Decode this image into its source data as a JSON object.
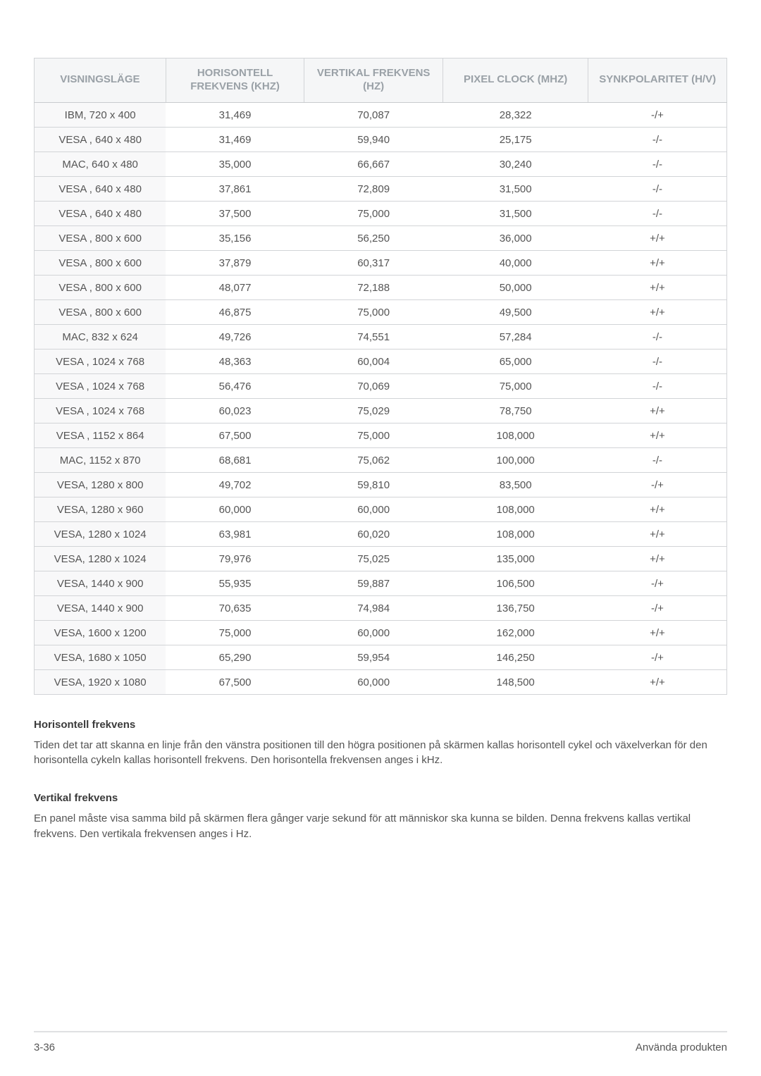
{
  "table": {
    "columns": [
      {
        "label": "VISNINGSLÄGE",
        "width": "19%"
      },
      {
        "label": "HORISONTELL FREKVENS (KHZ)",
        "width": "20%"
      },
      {
        "label": "VERTIKAL FREKVENS (HZ)",
        "width": "20%"
      },
      {
        "label": "PIXEL CLOCK (MHZ)",
        "width": "21%"
      },
      {
        "label": "SYNKPOLARITET (H/V)",
        "width": "20%"
      }
    ],
    "rows": [
      [
        "IBM, 720 x 400",
        "31,469",
        "70,087",
        "28,322",
        "-/+"
      ],
      [
        "VESA , 640 x 480",
        "31,469",
        "59,940",
        "25,175",
        "-/-"
      ],
      [
        "MAC, 640 x 480",
        "35,000",
        "66,667",
        "30,240",
        "-/-"
      ],
      [
        "VESA , 640 x 480",
        "37,861",
        "72,809",
        "31,500",
        "-/-"
      ],
      [
        "VESA , 640 x 480",
        "37,500",
        "75,000",
        "31,500",
        "-/-"
      ],
      [
        "VESA , 800 x 600",
        "35,156",
        "56,250",
        "36,000",
        "+/+"
      ],
      [
        "VESA , 800 x 600",
        "37,879",
        "60,317",
        "40,000",
        "+/+"
      ],
      [
        "VESA , 800 x 600",
        "48,077",
        "72,188",
        "50,000",
        "+/+"
      ],
      [
        "VESA , 800 x 600",
        "46,875",
        "75,000",
        "49,500",
        "+/+"
      ],
      [
        "MAC, 832 x 624",
        "49,726",
        "74,551",
        "57,284",
        "-/-"
      ],
      [
        "VESA , 1024 x 768",
        "48,363",
        "60,004",
        "65,000",
        "-/-"
      ],
      [
        "VESA , 1024 x 768",
        "56,476",
        "70,069",
        "75,000",
        "-/-"
      ],
      [
        "VESA , 1024 x 768",
        "60,023",
        "75,029",
        "78,750",
        "+/+"
      ],
      [
        "VESA , 1152 x 864",
        "67,500",
        "75,000",
        "108,000",
        "+/+"
      ],
      [
        "MAC, 1152 x 870",
        "68,681",
        "75,062",
        "100,000",
        "-/-"
      ],
      [
        "VESA, 1280 x 800",
        "49,702",
        "59,810",
        "83,500",
        "-/+"
      ],
      [
        "VESA, 1280 x 960",
        "60,000",
        "60,000",
        "108,000",
        "+/+"
      ],
      [
        "VESA, 1280 x 1024",
        "63,981",
        "60,020",
        "108,000",
        "+/+"
      ],
      [
        "VESA, 1280 x 1024",
        "79,976",
        "75,025",
        "135,000",
        "+/+"
      ],
      [
        "VESA, 1440 x 900",
        "55,935",
        "59,887",
        "106,500",
        "-/+"
      ],
      [
        "VESA, 1440 x 900",
        "70,635",
        "74,984",
        "136,750",
        "-/+"
      ],
      [
        "VESA, 1600 x 1200",
        "75,000",
        "60,000",
        "162,000",
        "+/+"
      ],
      [
        "VESA, 1680 x 1050",
        "65,290",
        "59,954",
        "146,250",
        "-/+"
      ],
      [
        "VESA, 1920 x 1080",
        "67,500",
        "60,000",
        "148,500",
        "+/+"
      ]
    ],
    "header_bg": "#f5f6f7",
    "header_fg": "#9aa1a7",
    "header_fontsize": 15,
    "cell_fontsize": 15,
    "cell_fg": "#555555",
    "mode_col_bg": "#f8f8f9",
    "border_color": "#d2d4d7"
  },
  "sections": [
    {
      "title": "Horisontell frekvens",
      "body": "Tiden det tar att skanna en linje från den vänstra positionen till den högra positionen på skärmen kallas horisontell cykel och växelverkan för den horisontella cykeln kallas horisontell frekvens. Den horisontella frekvensen anges i kHz."
    },
    {
      "title": "Vertikal frekvens",
      "body": "En panel måste visa samma bild på skärmen flera gånger varje sekund för att människor ska kunna se bilden. Denna frekvens kallas vertikal frekvens. Den vertikala frekvensen anges i Hz."
    }
  ],
  "footer": {
    "left": "3-36",
    "right": "Använda produkten"
  }
}
